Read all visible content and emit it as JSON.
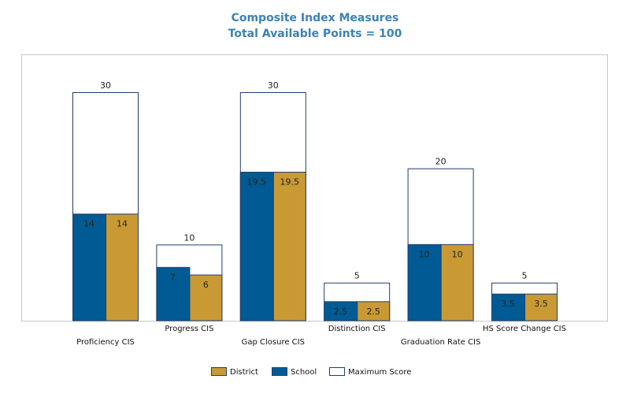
{
  "chart_data": {
    "type": "bar",
    "title": "Composite Index Measures",
    "subtitle": "Total Available Points = 100",
    "categories": [
      "Proficiency CIS",
      "Progress CIS",
      "Gap Closure CIS",
      "Distinction CIS",
      "Graduation Rate CIS",
      "HS Score Change CIS"
    ],
    "series": [
      {
        "name": "School",
        "color": "#005b94",
        "values": [
          14,
          7,
          19.5,
          2.5,
          10,
          3.5
        ]
      },
      {
        "name": "District",
        "color": "#c99a33",
        "values": [
          14,
          6,
          19.5,
          2.5,
          10,
          3.5
        ]
      },
      {
        "name": "Maximum Score",
        "color": "#ffffff",
        "values": [
          30,
          10,
          30,
          5,
          20,
          5
        ]
      }
    ],
    "ylim": [
      0,
      35
    ],
    "grid": false,
    "legend_position": "bottom",
    "legend_order": [
      "District",
      "School",
      "Maximum Score"
    ],
    "border_color": "#1f3f6b"
  }
}
